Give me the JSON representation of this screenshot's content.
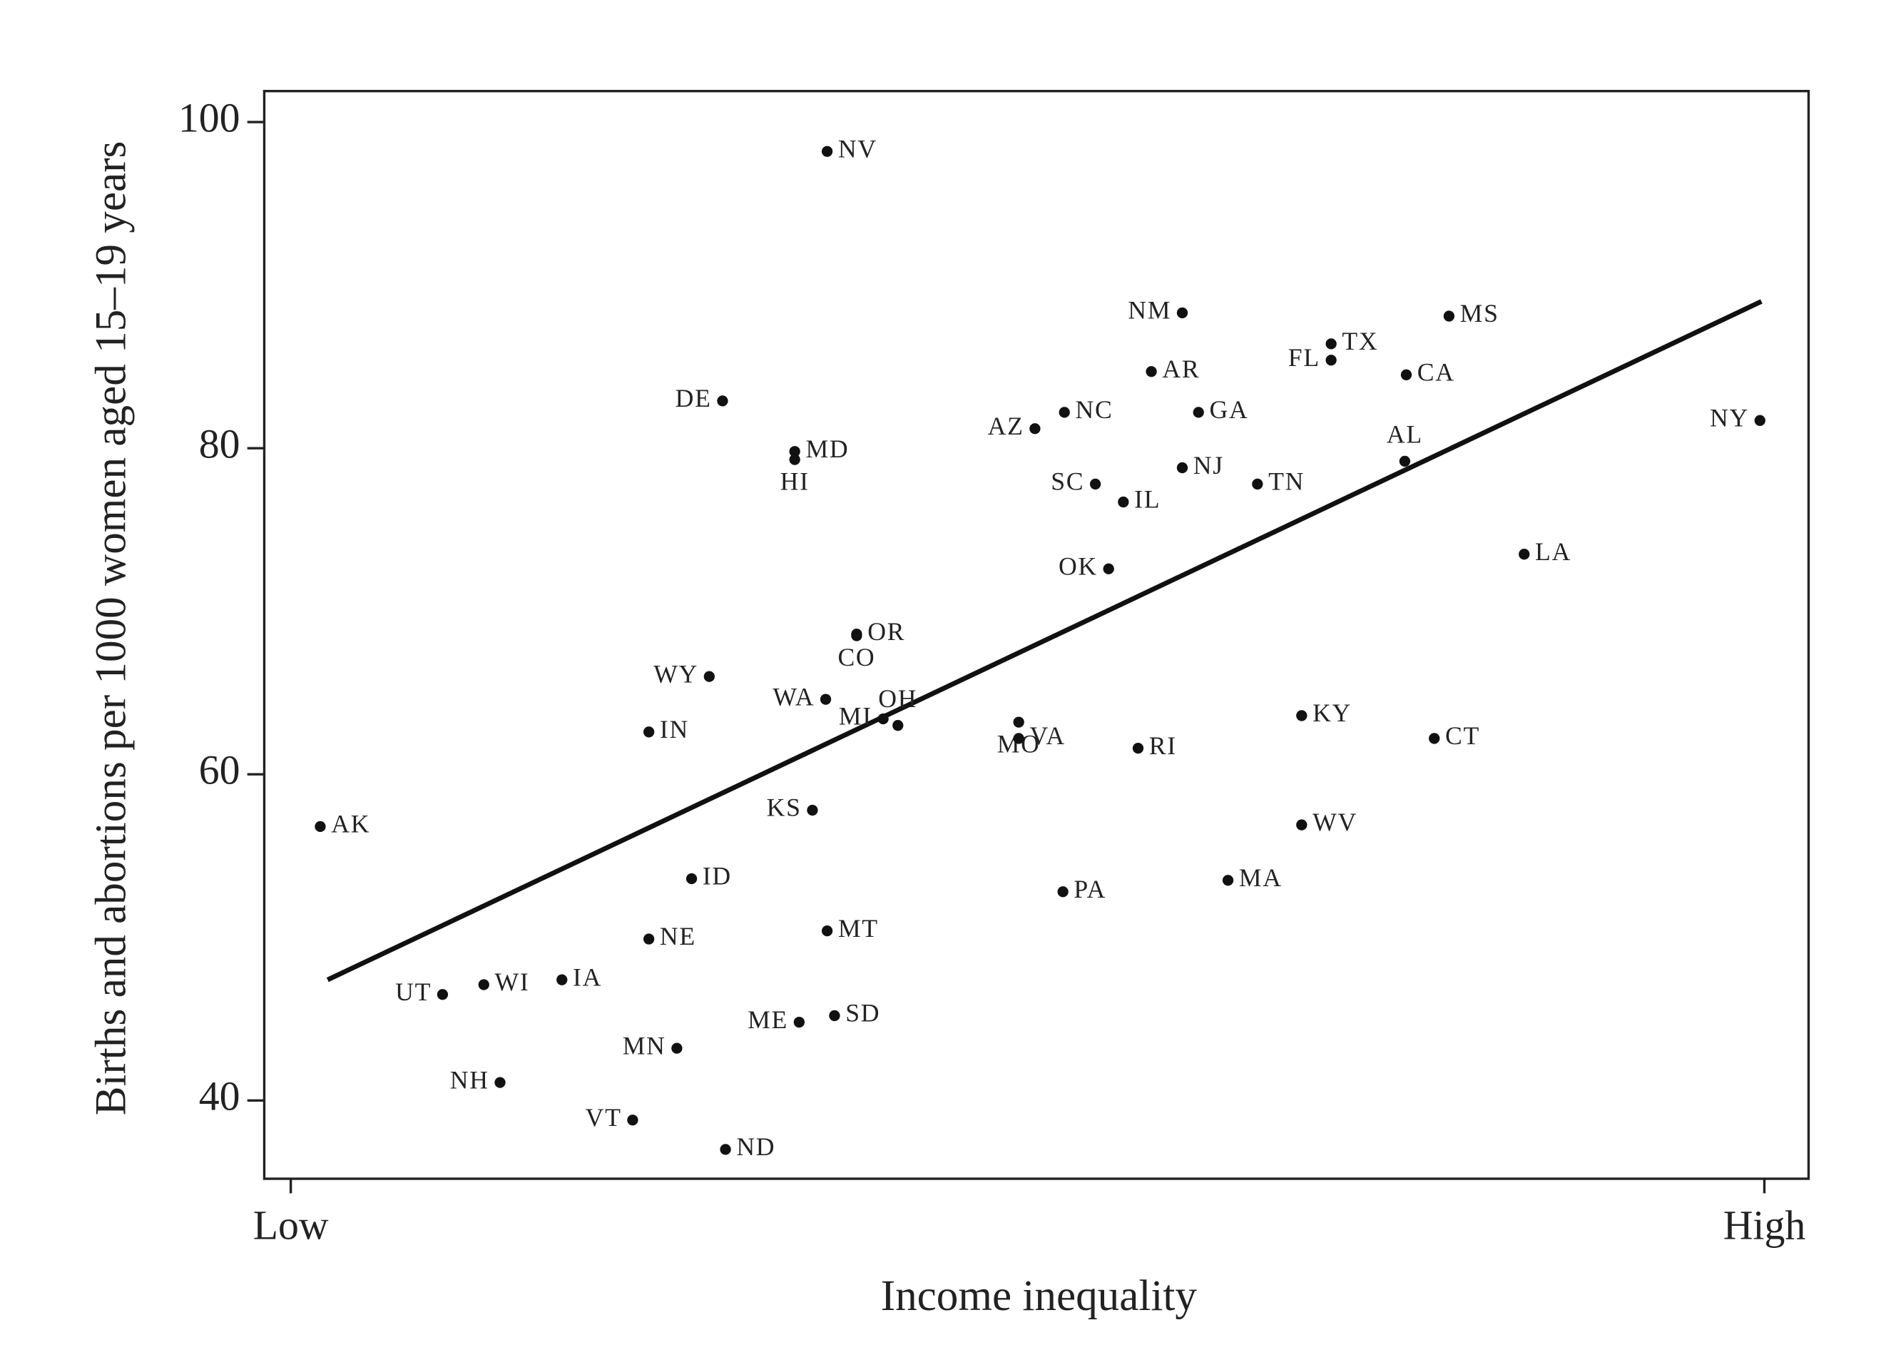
{
  "chart_data": {
    "type": "scatter",
    "x_label": "Income inequality",
    "y_label": "Births and abortions per 1000 women aged 15–19 years",
    "xlim": [
      -1.8,
      103.0
    ],
    "ylim": [
      35.2,
      101.9
    ],
    "xticks": [
      {
        "value": 0,
        "label": "Low"
      },
      {
        "value": 100,
        "label": "High"
      }
    ],
    "yticks": [
      40,
      60,
      80,
      100
    ],
    "color": "#111111",
    "labels": [
      "NV",
      "NM",
      "MS",
      "TX",
      "FL",
      "AR",
      "CA",
      "DE",
      "NC",
      "GA",
      "AZ",
      "NY",
      "MD",
      "HI",
      "AL",
      "NJ",
      "SC",
      "TN",
      "IL",
      "LA",
      "OK",
      "OR",
      "CO",
      "WY",
      "WA",
      "MI",
      "OH",
      "MO",
      "VA",
      "KY",
      "IN",
      "CT",
      "RI",
      "KS",
      "AK",
      "WV",
      "ID",
      "MA",
      "PA",
      "MT",
      "NE",
      "IA",
      "WI",
      "UT",
      "SD",
      "ME",
      "MN",
      "NH",
      "VT",
      "ND"
    ],
    "x": [
      36.4,
      60.5,
      78.6,
      70.6,
      70.6,
      58.4,
      75.7,
      29.3,
      52.5,
      61.6,
      50.5,
      99.7,
      34.2,
      34.2,
      75.6,
      60.5,
      54.6,
      65.6,
      56.5,
      83.7,
      55.5,
      38.4,
      38.4,
      28.4,
      36.3,
      40.2,
      41.2,
      49.4,
      49.4,
      68.6,
      24.3,
      77.6,
      57.5,
      35.4,
      2.0,
      68.6,
      27.2,
      63.6,
      52.4,
      36.4,
      24.3,
      18.4,
      13.1,
      10.3,
      36.9,
      34.5,
      26.2,
      14.2,
      23.2,
      29.5
    ],
    "y": [
      98.2,
      88.3,
      88.1,
      86.4,
      85.4,
      84.7,
      84.5,
      82.9,
      82.2,
      82.2,
      81.2,
      81.7,
      79.8,
      79.3,
      79.2,
      78.8,
      77.8,
      77.8,
      76.7,
      73.5,
      72.6,
      68.6,
      68.5,
      66.0,
      64.6,
      63.4,
      63.0,
      63.2,
      62.2,
      63.6,
      62.6,
      62.2,
      61.6,
      57.8,
      56.8,
      56.9,
      53.6,
      53.5,
      52.8,
      50.4,
      49.9,
      47.4,
      47.1,
      46.5,
      45.2,
      44.8,
      43.2,
      41.1,
      38.8,
      37.0
    ],
    "trendline": {
      "x": [
        2.5,
        99.8
      ],
      "y": [
        47.4,
        89.0
      ],
      "color": "#111111"
    }
  }
}
